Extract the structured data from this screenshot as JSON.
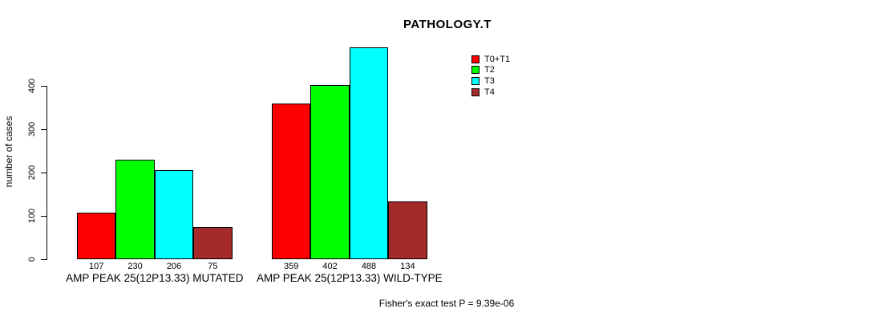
{
  "chart_data": {
    "type": "bar",
    "title": "PATHOLOGY.T",
    "ylabel": "number of cases",
    "xlabel": "",
    "categories": [
      "AMP PEAK 25(12P13.33) MUTATED",
      "AMP PEAK 25(12P13.33) WILD-TYPE"
    ],
    "series": [
      {
        "name": "T0+T1",
        "color": "#FF0000",
        "values": [
          107,
          359
        ]
      },
      {
        "name": "T2",
        "color": "#00FF00",
        "values": [
          230,
          402
        ]
      },
      {
        "name": "T3",
        "color": "#00FFFF",
        "values": [
          206,
          488
        ]
      },
      {
        "name": "T4",
        "color": "#A52A2A",
        "values": [
          75,
          134
        ]
      }
    ],
    "y_ticks": [
      0,
      100,
      200,
      300,
      400
    ],
    "ylim": [
      0,
      400
    ],
    "grid": false,
    "bar_value_labels": true,
    "legend_position": "top-right",
    "annotation": "Fisher's exact test P = 9.39e-06"
  },
  "colors": {
    "axis": "#000000",
    "text": "#000000",
    "background": "#FFFFFF"
  }
}
